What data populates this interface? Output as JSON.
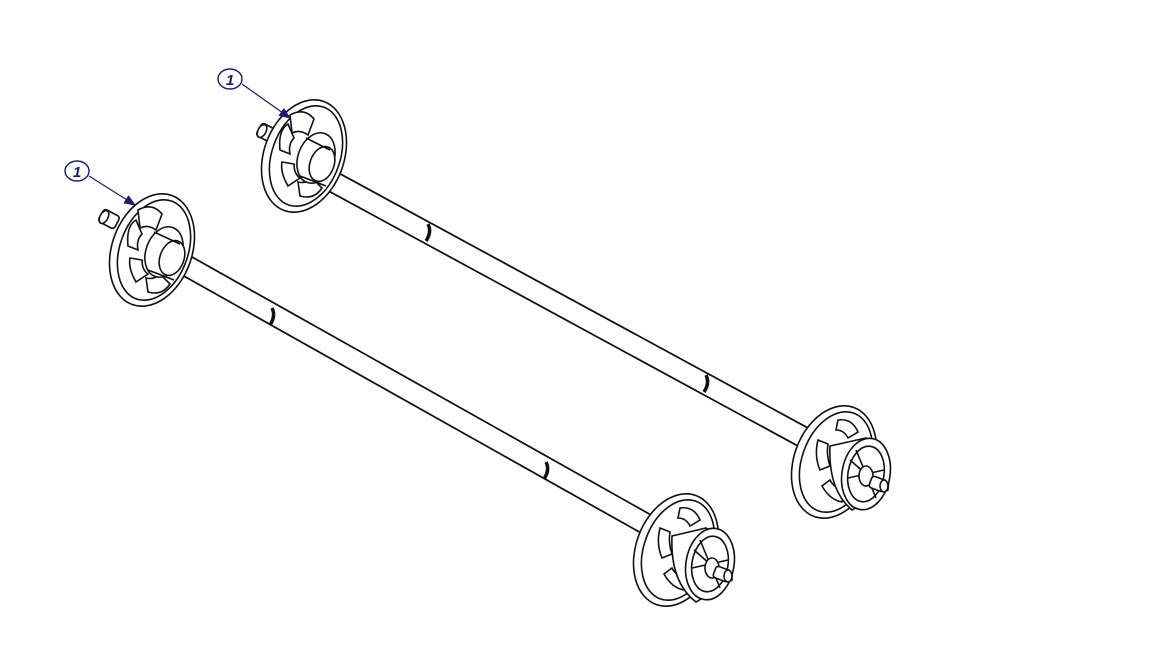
{
  "diagram": {
    "background_color": "#ffffff",
    "line_color": "#111111",
    "callout_color": "#1a1a6e",
    "callouts": [
      {
        "label": "1",
        "target": "rear-spindle-left-flange"
      },
      {
        "label": "1",
        "target": "front-spindle-left-flange"
      }
    ],
    "parts": [
      {
        "name": "rear-spindle",
        "components": [
          "left-flange",
          "shaft",
          "right-flange",
          "right-hub"
        ]
      },
      {
        "name": "front-spindle",
        "components": [
          "left-flange",
          "shaft",
          "right-flange",
          "right-hub"
        ]
      }
    ]
  }
}
